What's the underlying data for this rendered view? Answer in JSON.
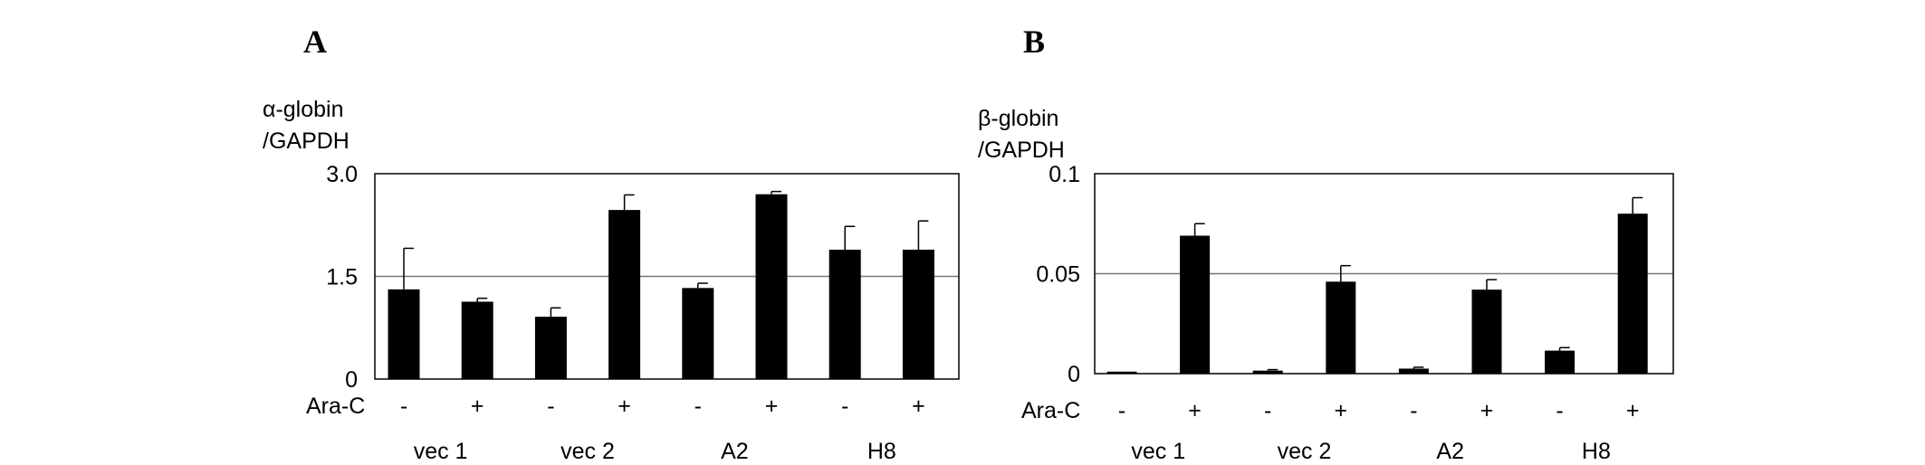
{
  "panels": [
    {
      "letter": "A",
      "ylabel_line1": "α-globin",
      "ylabel_line2": "/GAPDH"
    },
    {
      "letter": "B",
      "ylabel_line1": "β-globin",
      "ylabel_line2": "/GAPDH"
    }
  ],
  "chart_data": [
    {
      "type": "bar",
      "title": "",
      "ylabel": "α-globin /GAPDH",
      "xlabel": "",
      "ylim": [
        0,
        3.0
      ],
      "yticks": [
        "0",
        "1.5",
        "3.0"
      ],
      "tick_values": [
        0,
        1.5,
        3.0
      ],
      "reference_line": 1.5,
      "treatment_label": "Ara-C",
      "treatment": [
        "-",
        "+",
        "-",
        "+",
        "-",
        "+",
        "-",
        "+"
      ],
      "groups": [
        "vec 1",
        "vec 2",
        "A2",
        "H8"
      ],
      "values": [
        1.31,
        1.13,
        0.91,
        2.47,
        1.33,
        2.7,
        1.89,
        1.89
      ],
      "errors": [
        0.6,
        0.05,
        0.13,
        0.22,
        0.07,
        0.04,
        0.34,
        0.42
      ],
      "bar_color": "#000000"
    },
    {
      "type": "bar",
      "title": "",
      "ylabel": "β-globin /GAPDH",
      "xlabel": "",
      "ylim": [
        0,
        0.1
      ],
      "yticks": [
        "0",
        "0.05",
        "0.1"
      ],
      "tick_values": [
        0,
        0.05,
        0.1
      ],
      "reference_line": 0.05,
      "treatment_label": "Ara-C",
      "treatment": [
        "-",
        "+",
        "-",
        "+",
        "-",
        "+",
        "-",
        "+"
      ],
      "groups": [
        "vec 1",
        "vec 2",
        "A2",
        "H8"
      ],
      "values": [
        0.001,
        0.069,
        0.0015,
        0.046,
        0.0025,
        0.042,
        0.0115,
        0.08
      ],
      "errors": [
        0.0,
        0.006,
        0.0005,
        0.008,
        0.0007,
        0.005,
        0.0015,
        0.008
      ],
      "bar_color": "#000000"
    }
  ]
}
